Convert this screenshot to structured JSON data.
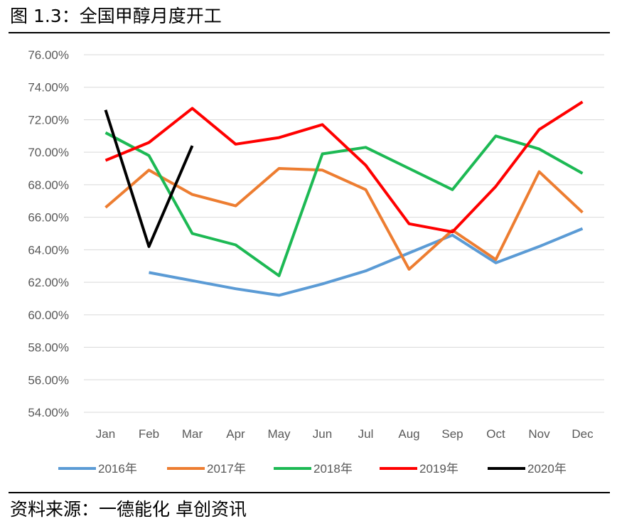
{
  "figure_title": "图 1.3：全国甲醇月度开工",
  "source": "资料来源：一德能化 卓创资讯",
  "chart_data": {
    "type": "line",
    "title": "",
    "xlabel": "",
    "ylabel": "",
    "categories": [
      "Jan",
      "Feb",
      "Mar",
      "Apr",
      "May",
      "Jun",
      "Jul",
      "Aug",
      "Sep",
      "Oct",
      "Nov",
      "Dec"
    ],
    "ylim": [
      54,
      76
    ],
    "yticks": [
      54,
      56,
      58,
      60,
      62,
      64,
      66,
      68,
      70,
      72,
      74,
      76
    ],
    "ytick_labels": [
      "54.00%",
      "56.00%",
      "58.00%",
      "60.00%",
      "62.00%",
      "64.00%",
      "66.00%",
      "68.00%",
      "70.00%",
      "72.00%",
      "74.00%",
      "76.00%"
    ],
    "grid": true,
    "legend_position": "bottom",
    "series": [
      {
        "name": "2016年",
        "color": "#5B9BD5",
        "values": [
          null,
          62.6,
          62.1,
          61.6,
          61.2,
          61.9,
          62.7,
          63.8,
          64.9,
          63.2,
          64.2,
          65.3
        ]
      },
      {
        "name": "2017年",
        "color": "#ED7D31",
        "values": [
          66.6,
          68.9,
          67.4,
          66.7,
          69.0,
          68.9,
          67.7,
          62.8,
          65.2,
          63.4,
          68.8,
          66.3
        ]
      },
      {
        "name": "2018年",
        "color": "#1DB954",
        "values": [
          71.2,
          69.8,
          65.0,
          64.3,
          62.4,
          69.9,
          70.3,
          69.0,
          67.7,
          71.0,
          70.2,
          68.7
        ]
      },
      {
        "name": "2019年",
        "color": "#FF0000",
        "values": [
          69.5,
          70.6,
          72.7,
          70.5,
          70.9,
          71.7,
          69.2,
          65.6,
          65.1,
          67.9,
          71.4,
          73.1
        ]
      },
      {
        "name": "2020年",
        "color": "#000000",
        "values": [
          72.6,
          64.2,
          70.4,
          null,
          null,
          null,
          null,
          null,
          null,
          null,
          null,
          null
        ]
      }
    ]
  }
}
